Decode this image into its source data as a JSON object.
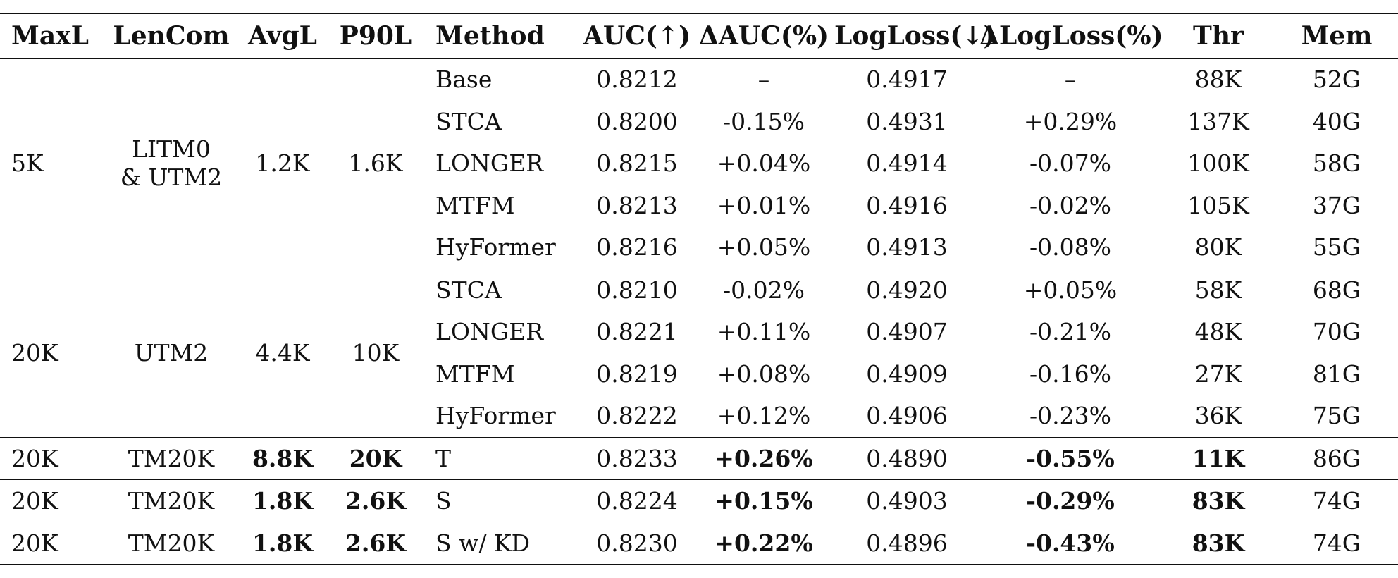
{
  "table": {
    "headers": [
      "MaxL",
      "LenCom",
      "AvgL",
      "P90L",
      "Method",
      "AUC(↑)",
      "ΔAUC(%)",
      "LogLoss(↓)",
      "ΔLogLoss(%)",
      "Thr",
      "Mem"
    ],
    "group1": {
      "maxl": "5K",
      "lencom_line1": "LITM0",
      "lencom_line2": "& UTM2",
      "avgl": "1.2K",
      "p90l": "1.6K",
      "rows": [
        {
          "method": "Base",
          "auc": "0.8212",
          "dauc": "–",
          "logloss": "0.4917",
          "dlogloss": "–",
          "thr": "88K",
          "mem": "52G"
        },
        {
          "method": "STCA",
          "auc": "0.8200",
          "dauc": "-0.15%",
          "logloss": "0.4931",
          "dlogloss": "+0.29%",
          "thr": "137K",
          "mem": "40G"
        },
        {
          "method": "LONGER",
          "auc": "0.8215",
          "dauc": "+0.04%",
          "logloss": "0.4914",
          "dlogloss": "-0.07%",
          "thr": "100K",
          "mem": "58G"
        },
        {
          "method": "MTFM",
          "auc": "0.8213",
          "dauc": "+0.01%",
          "logloss": "0.4916",
          "dlogloss": "-0.02%",
          "thr": "105K",
          "mem": "37G"
        },
        {
          "method": "HyFormer",
          "auc": "0.8216",
          "dauc": "+0.05%",
          "logloss": "0.4913",
          "dlogloss": "-0.08%",
          "thr": "80K",
          "mem": "55G"
        }
      ]
    },
    "group2": {
      "maxl": "20K",
      "lencom": "UTM2",
      "avgl": "4.4K",
      "p90l": "10K",
      "rows": [
        {
          "method": "STCA",
          "auc": "0.8210",
          "dauc": "-0.02%",
          "logloss": "0.4920",
          "dlogloss": "+0.05%",
          "thr": "58K",
          "mem": "68G"
        },
        {
          "method": "LONGER",
          "auc": "0.8221",
          "dauc": "+0.11%",
          "logloss": "0.4907",
          "dlogloss": "-0.21%",
          "thr": "48K",
          "mem": "70G"
        },
        {
          "method": "MTFM",
          "auc": "0.8219",
          "dauc": "+0.08%",
          "logloss": "0.4909",
          "dlogloss": "-0.16%",
          "thr": "27K",
          "mem": "81G"
        },
        {
          "method": "HyFormer",
          "auc": "0.8222",
          "dauc": "+0.12%",
          "logloss": "0.4906",
          "dlogloss": "-0.23%",
          "thr": "36K",
          "mem": "75G"
        }
      ]
    },
    "group3": {
      "rows": [
        {
          "maxl": "20K",
          "lencom": "TM20K",
          "avgl": "8.8K",
          "p90l": "20K",
          "method": "T",
          "auc": "0.8233",
          "dauc": "+0.26%",
          "logloss": "0.4890",
          "dlogloss": "-0.55%",
          "thr": "11K",
          "mem": "86G"
        }
      ]
    },
    "group4": {
      "rows": [
        {
          "maxl": "20K",
          "lencom": "TM20K",
          "avgl": "1.8K",
          "p90l": "2.6K",
          "method": "S",
          "auc": "0.8224",
          "dauc": "+0.15%",
          "logloss": "0.4903",
          "dlogloss": "-0.29%",
          "thr": "83K",
          "mem": "74G"
        },
        {
          "maxl": "20K",
          "lencom": "TM20K",
          "avgl": "1.8K",
          "p90l": "2.6K",
          "method": "S w/ KD",
          "auc": "0.8230",
          "dauc": "+0.22%",
          "logloss": "0.4896",
          "dlogloss": "-0.43%",
          "thr": "83K",
          "mem": "74G"
        }
      ]
    }
  }
}
